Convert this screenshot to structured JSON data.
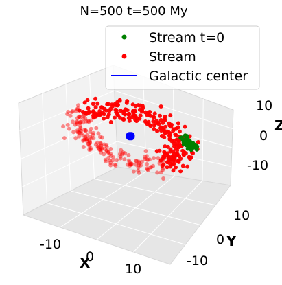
{
  "chart_data": {
    "type": "scatter",
    "projection": "3d",
    "title": "N=500 t=500 My",
    "xlabel": "X",
    "ylabel": "Y",
    "zlabel": "Z",
    "xlim": [
      -20,
      20
    ],
    "ylim": [
      -20,
      20
    ],
    "zlim": [
      -15,
      15
    ],
    "grid": true,
    "legend_position": "top-right",
    "x_ticks": [
      -10,
      0,
      10
    ],
    "y_ticks": [
      -10,
      0,
      10
    ],
    "z_ticks": [
      -10,
      0,
      10
    ],
    "x_tick_labels": [
      "-10",
      "0",
      "10"
    ],
    "y_tick_labels": [
      "-10",
      "0",
      "10"
    ],
    "z_tick_labels": [
      "-10",
      "0",
      "10"
    ],
    "series": [
      {
        "name": "Stream t=0",
        "color": "#008000",
        "marker": "circle",
        "description_points": "compact cluster",
        "center": [
          8,
          -10,
          -2
        ],
        "spread": 1.0,
        "count": 70
      },
      {
        "name": "Stream",
        "color": "#ff0000",
        "marker": "circle",
        "ring_radius": 11,
        "ring_z": -2,
        "count": 430
      },
      {
        "name": "Galactic center",
        "color": "#0000ff",
        "marker": "line",
        "point": [
          0,
          0,
          -2
        ]
      }
    ]
  }
}
